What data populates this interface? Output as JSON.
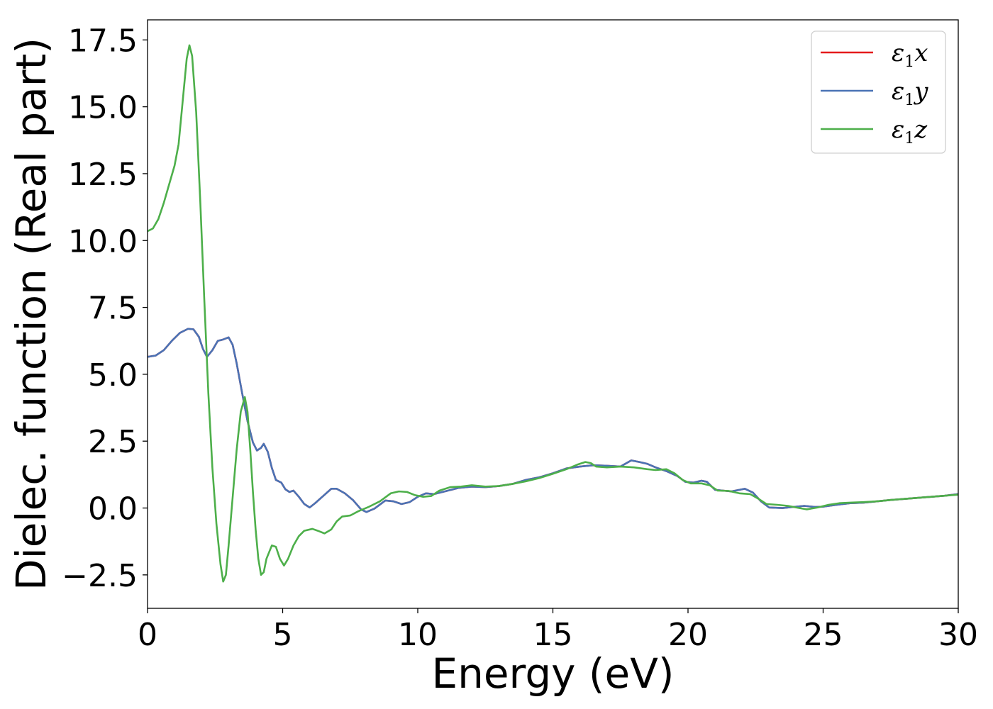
{
  "chart_data": {
    "type": "line",
    "xlabel": "Energy (eV)",
    "ylabel": "Dielec. function (Real part)",
    "xlim": [
      0,
      30
    ],
    "ylim": [
      -3.75,
      18.25
    ],
    "xticks": [
      0,
      5,
      10,
      15,
      20,
      25,
      30
    ],
    "xtick_labels": [
      "0",
      "5",
      "10",
      "15",
      "20",
      "25",
      "30"
    ],
    "yticks": [
      -2.5,
      0.0,
      2.5,
      5.0,
      7.5,
      10.0,
      12.5,
      15.0,
      17.5
    ],
    "ytick_labels": [
      "−2.5",
      "0.0",
      "2.5",
      "5.0",
      "7.5",
      "10.0",
      "12.5",
      "15.0",
      "17.5"
    ],
    "grid": false,
    "legend_position": "top-right",
    "series": [
      {
        "name": "ε₁x",
        "legend": {
          "main": "ε",
          "sub": "1",
          "tail": "x"
        },
        "color": "#e41a1c",
        "points": [
          [
            0,
            5.65
          ],
          [
            0.3,
            5.7
          ],
          [
            0.6,
            5.9
          ],
          [
            0.9,
            6.25
          ],
          [
            1.2,
            6.55
          ],
          [
            1.5,
            6.7
          ],
          [
            1.7,
            6.68
          ],
          [
            1.9,
            6.4
          ],
          [
            2.05,
            5.95
          ],
          [
            2.2,
            5.65
          ],
          [
            2.4,
            5.9
          ],
          [
            2.6,
            6.25
          ],
          [
            2.8,
            6.3
          ],
          [
            3.0,
            6.38
          ],
          [
            3.15,
            6.1
          ],
          [
            3.3,
            5.4
          ],
          [
            3.5,
            4.3
          ],
          [
            3.7,
            3.25
          ],
          [
            3.9,
            2.45
          ],
          [
            4.05,
            2.15
          ],
          [
            4.2,
            2.25
          ],
          [
            4.3,
            2.4
          ],
          [
            4.45,
            2.1
          ],
          [
            4.6,
            1.5
          ],
          [
            4.75,
            1.05
          ],
          [
            4.95,
            0.95
          ],
          [
            5.1,
            0.7
          ],
          [
            5.25,
            0.6
          ],
          [
            5.4,
            0.65
          ],
          [
            5.6,
            0.42
          ],
          [
            5.8,
            0.15
          ],
          [
            6.0,
            0.02
          ],
          [
            6.2,
            0.18
          ],
          [
            6.5,
            0.45
          ],
          [
            6.8,
            0.72
          ],
          [
            7.0,
            0.72
          ],
          [
            7.3,
            0.55
          ],
          [
            7.6,
            0.3
          ],
          [
            7.9,
            -0.05
          ],
          [
            8.1,
            -0.15
          ],
          [
            8.4,
            -0.02
          ],
          [
            8.8,
            0.28
          ],
          [
            9.1,
            0.25
          ],
          [
            9.4,
            0.15
          ],
          [
            9.7,
            0.22
          ],
          [
            10.0,
            0.42
          ],
          [
            10.3,
            0.55
          ],
          [
            10.6,
            0.52
          ],
          [
            11.0,
            0.62
          ],
          [
            11.5,
            0.75
          ],
          [
            12.0,
            0.8
          ],
          [
            12.5,
            0.78
          ],
          [
            13.0,
            0.82
          ],
          [
            13.5,
            0.9
          ],
          [
            14.0,
            1.05
          ],
          [
            14.5,
            1.15
          ],
          [
            15.0,
            1.3
          ],
          [
            15.5,
            1.48
          ],
          [
            16.0,
            1.55
          ],
          [
            16.5,
            1.6
          ],
          [
            17.0,
            1.58
          ],
          [
            17.5,
            1.55
          ],
          [
            17.9,
            1.78
          ],
          [
            18.2,
            1.72
          ],
          [
            18.5,
            1.65
          ],
          [
            18.8,
            1.52
          ],
          [
            19.2,
            1.38
          ],
          [
            19.6,
            1.2
          ],
          [
            19.9,
            0.98
          ],
          [
            20.2,
            0.95
          ],
          [
            20.5,
            1.02
          ],
          [
            20.7,
            0.98
          ],
          [
            21.0,
            0.68
          ],
          [
            21.3,
            0.65
          ],
          [
            21.6,
            0.62
          ],
          [
            21.9,
            0.68
          ],
          [
            22.1,
            0.72
          ],
          [
            22.4,
            0.58
          ],
          [
            22.7,
            0.25
          ],
          [
            23.0,
            0.02
          ],
          [
            23.5,
            0.0
          ],
          [
            24.0,
            0.05
          ],
          [
            24.3,
            0.08
          ],
          [
            24.7,
            0.04
          ],
          [
            25.0,
            0.05
          ],
          [
            25.5,
            0.12
          ],
          [
            26.0,
            0.18
          ],
          [
            26.5,
            0.2
          ],
          [
            27.0,
            0.25
          ],
          [
            27.5,
            0.3
          ],
          [
            28.0,
            0.34
          ],
          [
            28.5,
            0.38
          ],
          [
            29.0,
            0.42
          ],
          [
            29.5,
            0.46
          ],
          [
            30.0,
            0.52
          ]
        ]
      },
      {
        "name": "ε₁y",
        "legend": {
          "main": "ε",
          "sub": "1",
          "tail": "y"
        },
        "color": "#4a73b5",
        "points": [
          [
            0,
            5.65
          ],
          [
            0.3,
            5.7
          ],
          [
            0.6,
            5.9
          ],
          [
            0.9,
            6.25
          ],
          [
            1.2,
            6.55
          ],
          [
            1.5,
            6.7
          ],
          [
            1.7,
            6.68
          ],
          [
            1.9,
            6.4
          ],
          [
            2.05,
            5.95
          ],
          [
            2.2,
            5.65
          ],
          [
            2.4,
            5.9
          ],
          [
            2.6,
            6.25
          ],
          [
            2.8,
            6.3
          ],
          [
            3.0,
            6.38
          ],
          [
            3.15,
            6.1
          ],
          [
            3.3,
            5.4
          ],
          [
            3.5,
            4.3
          ],
          [
            3.7,
            3.25
          ],
          [
            3.9,
            2.45
          ],
          [
            4.05,
            2.15
          ],
          [
            4.2,
            2.25
          ],
          [
            4.3,
            2.4
          ],
          [
            4.45,
            2.1
          ],
          [
            4.6,
            1.5
          ],
          [
            4.75,
            1.05
          ],
          [
            4.95,
            0.95
          ],
          [
            5.1,
            0.7
          ],
          [
            5.25,
            0.6
          ],
          [
            5.4,
            0.65
          ],
          [
            5.6,
            0.42
          ],
          [
            5.8,
            0.15
          ],
          [
            6.0,
            0.02
          ],
          [
            6.2,
            0.18
          ],
          [
            6.5,
            0.45
          ],
          [
            6.8,
            0.72
          ],
          [
            7.0,
            0.72
          ],
          [
            7.3,
            0.55
          ],
          [
            7.6,
            0.3
          ],
          [
            7.9,
            -0.05
          ],
          [
            8.1,
            -0.15
          ],
          [
            8.4,
            -0.02
          ],
          [
            8.8,
            0.28
          ],
          [
            9.1,
            0.25
          ],
          [
            9.4,
            0.15
          ],
          [
            9.7,
            0.22
          ],
          [
            10.0,
            0.42
          ],
          [
            10.3,
            0.55
          ],
          [
            10.6,
            0.52
          ],
          [
            11.0,
            0.62
          ],
          [
            11.5,
            0.75
          ],
          [
            12.0,
            0.8
          ],
          [
            12.5,
            0.78
          ],
          [
            13.0,
            0.82
          ],
          [
            13.5,
            0.9
          ],
          [
            14.0,
            1.05
          ],
          [
            14.5,
            1.15
          ],
          [
            15.0,
            1.3
          ],
          [
            15.5,
            1.48
          ],
          [
            16.0,
            1.55
          ],
          [
            16.5,
            1.6
          ],
          [
            17.0,
            1.58
          ],
          [
            17.5,
            1.55
          ],
          [
            17.9,
            1.78
          ],
          [
            18.2,
            1.72
          ],
          [
            18.5,
            1.65
          ],
          [
            18.8,
            1.52
          ],
          [
            19.2,
            1.38
          ],
          [
            19.6,
            1.2
          ],
          [
            19.9,
            0.98
          ],
          [
            20.2,
            0.95
          ],
          [
            20.5,
            1.02
          ],
          [
            20.7,
            0.98
          ],
          [
            21.0,
            0.68
          ],
          [
            21.3,
            0.65
          ],
          [
            21.6,
            0.62
          ],
          [
            21.9,
            0.68
          ],
          [
            22.1,
            0.72
          ],
          [
            22.4,
            0.58
          ],
          [
            22.7,
            0.25
          ],
          [
            23.0,
            0.02
          ],
          [
            23.5,
            0.0
          ],
          [
            24.0,
            0.05
          ],
          [
            24.3,
            0.08
          ],
          [
            24.7,
            0.04
          ],
          [
            25.0,
            0.05
          ],
          [
            25.5,
            0.12
          ],
          [
            26.0,
            0.18
          ],
          [
            26.5,
            0.2
          ],
          [
            27.0,
            0.25
          ],
          [
            27.5,
            0.3
          ],
          [
            28.0,
            0.34
          ],
          [
            28.5,
            0.38
          ],
          [
            29.0,
            0.42
          ],
          [
            29.5,
            0.46
          ],
          [
            30.0,
            0.52
          ]
        ]
      },
      {
        "name": "ε₁z",
        "legend": {
          "main": "ε",
          "sub": "1",
          "tail": "z"
        },
        "color": "#4daf4a",
        "points": [
          [
            0,
            10.35
          ],
          [
            0.2,
            10.45
          ],
          [
            0.4,
            10.8
          ],
          [
            0.6,
            11.4
          ],
          [
            0.8,
            12.1
          ],
          [
            1.0,
            12.8
          ],
          [
            1.15,
            13.6
          ],
          [
            1.3,
            15.2
          ],
          [
            1.45,
            16.8
          ],
          [
            1.55,
            17.3
          ],
          [
            1.65,
            16.9
          ],
          [
            1.8,
            14.8
          ],
          [
            1.95,
            11.5
          ],
          [
            2.1,
            7.8
          ],
          [
            2.25,
            4.3
          ],
          [
            2.4,
            1.5
          ],
          [
            2.55,
            -0.6
          ],
          [
            2.7,
            -2.1
          ],
          [
            2.8,
            -2.75
          ],
          [
            2.9,
            -2.5
          ],
          [
            3.0,
            -1.4
          ],
          [
            3.15,
            0.4
          ],
          [
            3.3,
            2.2
          ],
          [
            3.45,
            3.6
          ],
          [
            3.6,
            4.15
          ],
          [
            3.7,
            3.6
          ],
          [
            3.8,
            2.2
          ],
          [
            3.9,
            0.6
          ],
          [
            4.0,
            -0.8
          ],
          [
            4.1,
            -1.9
          ],
          [
            4.2,
            -2.5
          ],
          [
            4.3,
            -2.4
          ],
          [
            4.4,
            -1.9
          ],
          [
            4.6,
            -1.4
          ],
          [
            4.75,
            -1.45
          ],
          [
            4.9,
            -1.9
          ],
          [
            5.05,
            -2.15
          ],
          [
            5.2,
            -1.9
          ],
          [
            5.4,
            -1.4
          ],
          [
            5.6,
            -1.05
          ],
          [
            5.8,
            -0.85
          ],
          [
            6.1,
            -0.78
          ],
          [
            6.3,
            -0.85
          ],
          [
            6.55,
            -0.95
          ],
          [
            6.8,
            -0.8
          ],
          [
            7.0,
            -0.5
          ],
          [
            7.2,
            -0.32
          ],
          [
            7.5,
            -0.28
          ],
          [
            7.8,
            -0.12
          ],
          [
            8.2,
            0.05
          ],
          [
            8.6,
            0.25
          ],
          [
            9.0,
            0.55
          ],
          [
            9.3,
            0.62
          ],
          [
            9.6,
            0.6
          ],
          [
            9.9,
            0.48
          ],
          [
            10.2,
            0.42
          ],
          [
            10.5,
            0.45
          ],
          [
            10.8,
            0.65
          ],
          [
            11.2,
            0.78
          ],
          [
            11.6,
            0.8
          ],
          [
            12.0,
            0.85
          ],
          [
            12.5,
            0.8
          ],
          [
            13.0,
            0.82
          ],
          [
            13.5,
            0.9
          ],
          [
            14.0,
            1.0
          ],
          [
            14.5,
            1.12
          ],
          [
            15.0,
            1.28
          ],
          [
            15.5,
            1.45
          ],
          [
            15.9,
            1.62
          ],
          [
            16.2,
            1.72
          ],
          [
            16.4,
            1.68
          ],
          [
            16.6,
            1.55
          ],
          [
            17.0,
            1.52
          ],
          [
            17.5,
            1.55
          ],
          [
            18.0,
            1.52
          ],
          [
            18.5,
            1.45
          ],
          [
            18.8,
            1.42
          ],
          [
            19.2,
            1.45
          ],
          [
            19.5,
            1.3
          ],
          [
            19.8,
            1.05
          ],
          [
            20.1,
            0.92
          ],
          [
            20.5,
            0.92
          ],
          [
            20.8,
            0.85
          ],
          [
            21.1,
            0.65
          ],
          [
            21.5,
            0.64
          ],
          [
            21.9,
            0.55
          ],
          [
            22.3,
            0.52
          ],
          [
            22.6,
            0.35
          ],
          [
            22.9,
            0.15
          ],
          [
            23.3,
            0.12
          ],
          [
            23.7,
            0.08
          ],
          [
            24.0,
            0.02
          ],
          [
            24.4,
            -0.05
          ],
          [
            24.8,
            0.02
          ],
          [
            25.2,
            0.12
          ],
          [
            25.6,
            0.18
          ],
          [
            26.0,
            0.2
          ],
          [
            26.5,
            0.22
          ],
          [
            27.0,
            0.25
          ],
          [
            27.5,
            0.3
          ],
          [
            28.0,
            0.34
          ],
          [
            28.5,
            0.38
          ],
          [
            29.0,
            0.42
          ],
          [
            29.5,
            0.46
          ],
          [
            30.0,
            0.5
          ]
        ]
      }
    ]
  }
}
